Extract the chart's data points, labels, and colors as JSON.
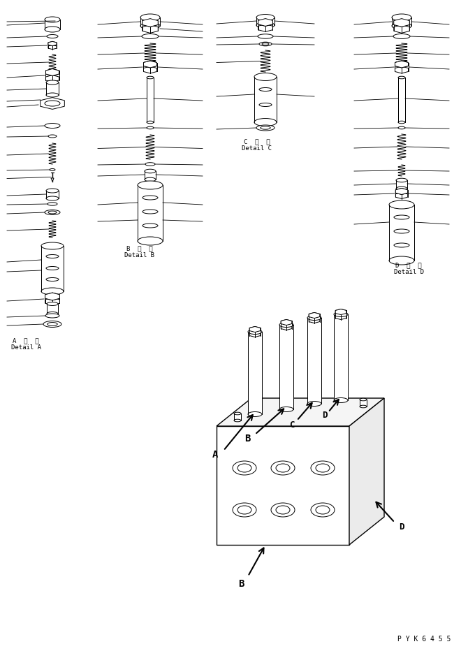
{
  "bg_color": "#ffffff",
  "line_color": "#000000",
  "fig_width": 6.7,
  "fig_height": 9.32,
  "dpi": 100,
  "labels": {
    "detail_a_jp": "A  詳  細",
    "detail_a_en": "Detail A",
    "detail_b_jp": "B  詳  細",
    "detail_b_en": "Detail B",
    "detail_c_jp": "C  詳  細",
    "detail_c_en": "Detail C",
    "detail_d_jp": "D  詳  細",
    "detail_d_en": "Detail D",
    "part_num": "P Y K 6 4 5 5"
  }
}
